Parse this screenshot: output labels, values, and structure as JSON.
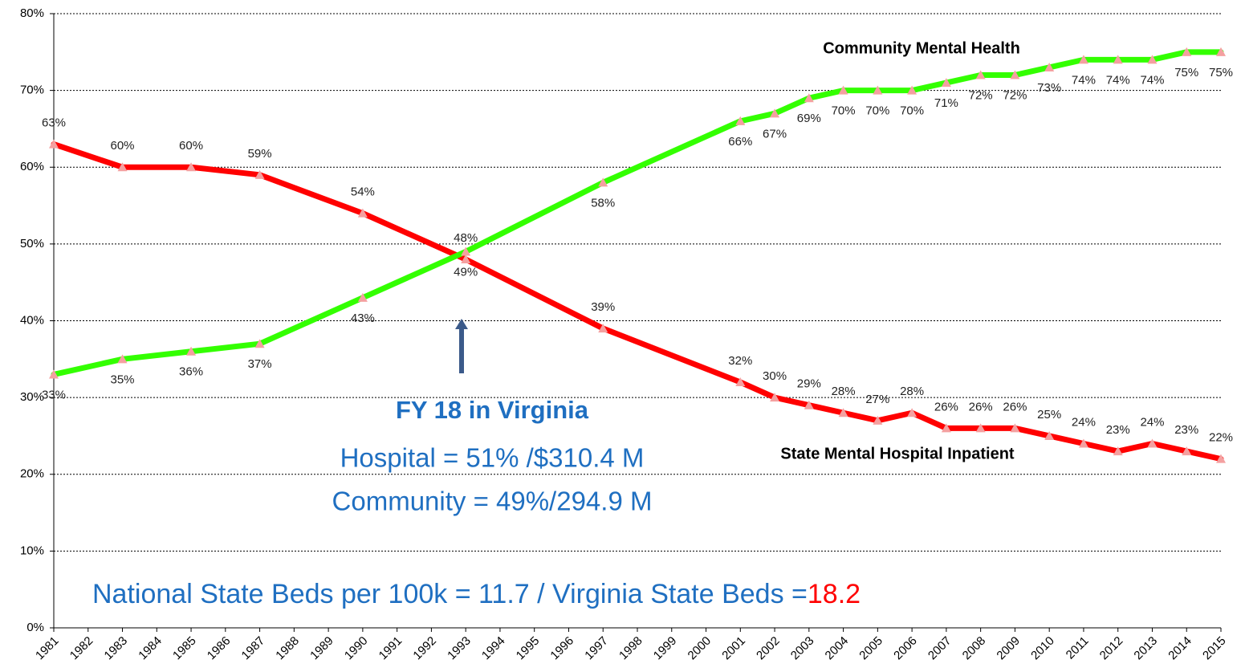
{
  "chart_data": {
    "type": "line",
    "x": [
      1981,
      1983,
      1985,
      1987,
      1990,
      1993,
      1997,
      2001,
      2002,
      2003,
      2004,
      2005,
      2006,
      2007,
      2008,
      2009,
      2010,
      2011,
      2012,
      2013,
      2014,
      2015
    ],
    "xlim": [
      1981,
      2015
    ],
    "xticks": [
      1981,
      1982,
      1983,
      1984,
      1985,
      1986,
      1987,
      1988,
      1989,
      1990,
      1991,
      1992,
      1993,
      1994,
      1995,
      1996,
      1997,
      1998,
      1999,
      2000,
      2001,
      2002,
      2003,
      2004,
      2005,
      2006,
      2007,
      2008,
      2009,
      2010,
      2011,
      2012,
      2013,
      2014,
      2015
    ],
    "ylim": [
      0,
      80
    ],
    "yticks": [
      {
        "value": 0,
        "label": "0%"
      },
      {
        "value": 10,
        "label": "10%"
      },
      {
        "value": 20,
        "label": "20%"
      },
      {
        "value": 30,
        "label": "30%"
      },
      {
        "value": 40,
        "label": "40%"
      },
      {
        "value": 50,
        "label": "50%"
      },
      {
        "value": 60,
        "label": "60%"
      },
      {
        "value": 70,
        "label": "70%"
      },
      {
        "value": 80,
        "label": "80%"
      }
    ],
    "grid": true,
    "series": [
      {
        "name": "State Mental Hospital Inpatient",
        "color": "#ff0000",
        "values": [
          63,
          60,
          60,
          59,
          54,
          48,
          39,
          32,
          30,
          29,
          28,
          27,
          28,
          26,
          26,
          26,
          25,
          24,
          23,
          24,
          23,
          22
        ],
        "value_labels": [
          "63%",
          "60%",
          "60%",
          "59%",
          "54%",
          "48%",
          "39%",
          "32%",
          "30%",
          "29%",
          "28%",
          "27%",
          "28%",
          "26%",
          "26%",
          "26%",
          "25%",
          "24%",
          "23%",
          "24%",
          "23%",
          "22%"
        ]
      },
      {
        "name": "Community  Mental Health",
        "color": "#33ff00",
        "values": [
          33,
          35,
          36,
          37,
          43,
          49,
          58,
          66,
          67,
          69,
          70,
          70,
          70,
          71,
          72,
          72,
          73,
          74,
          74,
          74,
          75,
          75
        ],
        "value_labels": [
          "33%",
          "35%",
          "36%",
          "37%",
          "43%",
          "49%",
          "58%",
          "66%",
          "67%",
          "69%",
          "70%",
          "70%",
          "70%",
          "71%",
          "72%",
          "72%",
          "73%",
          "74%",
          "74%",
          "74%",
          "75%",
          "75%"
        ]
      }
    ],
    "annotations": {
      "heading": "FY 18 in Virginia",
      "hospital": "Hospital = 51% /$310.4 M",
      "community": "Community = 49%/294.9 M",
      "beds": "National State Beds per 100k = 11.7 / Virginia State Beds =",
      "beds_value": "18.2"
    }
  }
}
